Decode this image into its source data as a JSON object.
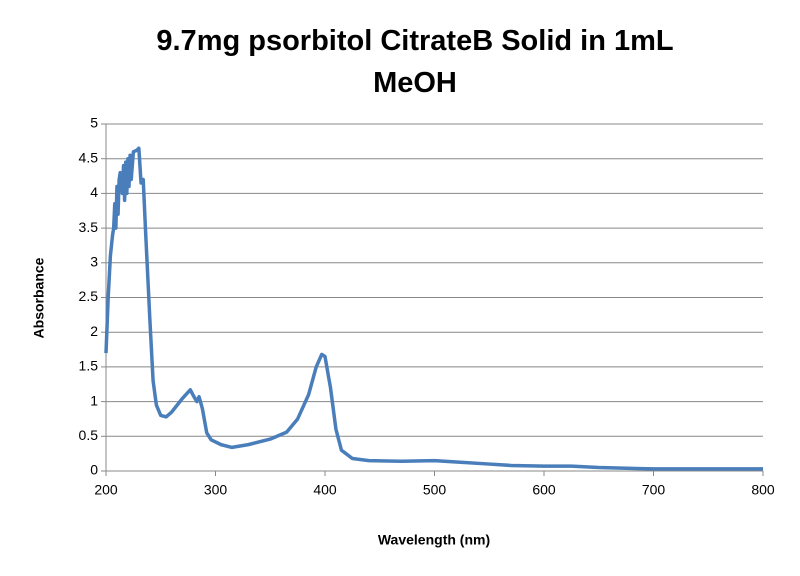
{
  "chart_data": {
    "type": "line",
    "title": "9.7mg psorbitol CitrateB Solid in 1mL MeOH",
    "x_label": "Wavelength (nm)",
    "y_label": "Absorbance",
    "x": [
      200,
      202,
      204,
      206,
      207,
      208,
      209,
      210,
      211,
      212,
      213,
      215,
      216,
      217,
      218,
      219,
      220,
      221,
      222,
      223,
      225,
      228,
      230,
      232,
      234,
      236,
      240,
      243,
      246,
      250,
      255,
      260,
      270,
      277,
      280,
      283,
      285,
      288,
      292,
      296,
      305,
      315,
      330,
      350,
      365,
      375,
      385,
      392,
      397,
      400,
      405,
      410,
      415,
      425,
      440,
      470,
      500,
      520,
      550,
      570,
      600,
      625,
      650,
      700,
      750,
      800
    ],
    "series": [
      {
        "name": "Absorbance",
        "color": "#4a7ebb",
        "values": [
          1.7,
          2.5,
          3.1,
          3.4,
          3.5,
          3.85,
          3.5,
          4.1,
          3.7,
          4.2,
          4.3,
          4.0,
          4.4,
          3.9,
          4.45,
          4.0,
          4.5,
          4.1,
          4.55,
          4.2,
          4.6,
          4.62,
          4.65,
          4.15,
          4.2,
          3.5,
          2.2,
          1.3,
          0.95,
          0.8,
          0.78,
          0.85,
          1.05,
          1.17,
          1.08,
          1.0,
          1.07,
          0.9,
          0.55,
          0.45,
          0.38,
          0.34,
          0.38,
          0.46,
          0.56,
          0.75,
          1.1,
          1.5,
          1.68,
          1.65,
          1.2,
          0.6,
          0.3,
          0.18,
          0.15,
          0.14,
          0.15,
          0.13,
          0.1,
          0.08,
          0.07,
          0.07,
          0.05,
          0.03,
          0.03,
          0.03
        ]
      }
    ],
    "xlim": [
      200,
      800
    ],
    "xticks": [
      200,
      300,
      400,
      500,
      600,
      700,
      800
    ],
    "ylim": [
      0,
      5
    ],
    "yticks": [
      0,
      0.5,
      1,
      1.5,
      2,
      2.5,
      3,
      3.5,
      4,
      4.5,
      5
    ],
    "grid": true
  }
}
